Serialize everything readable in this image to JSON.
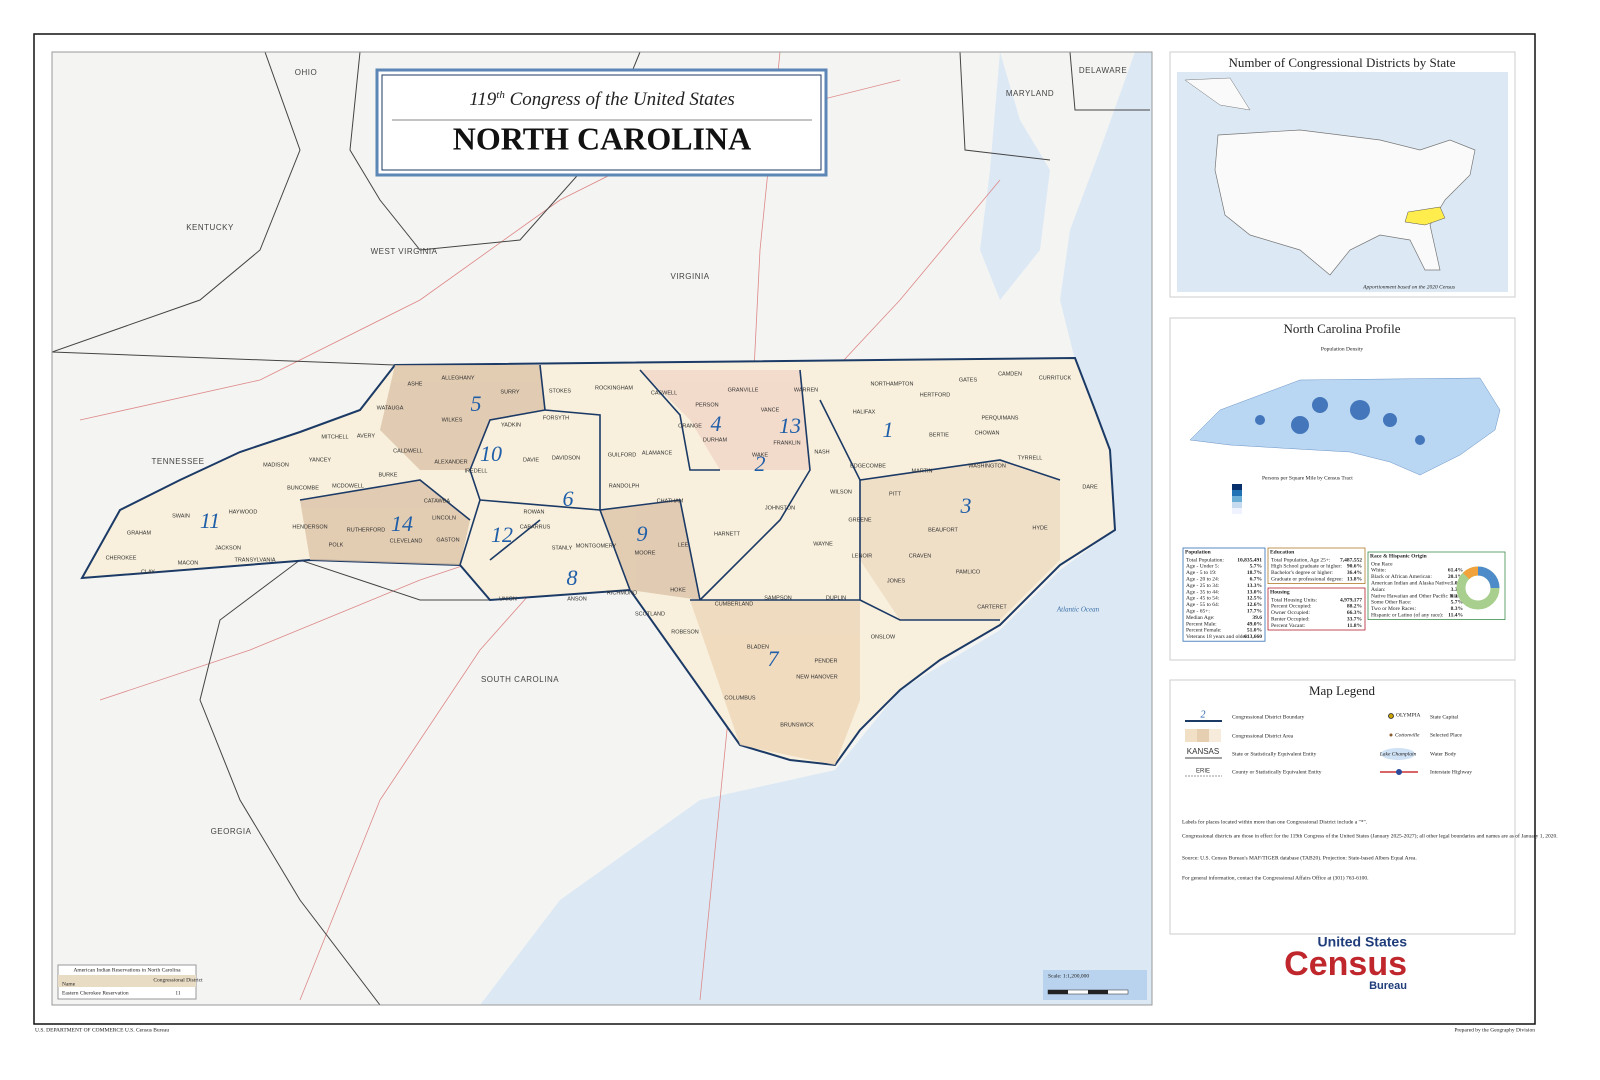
{
  "title": {
    "prefix": "119",
    "superscript": "th",
    "rest": " Congress of the United States",
    "state": "NORTH CAROLINA"
  },
  "map": {
    "neighbors": [
      "OHIO",
      "DELAWARE",
      "MARYLAND",
      "KENTUCKY",
      "WEST VIRGINIA",
      "VIRGINIA",
      "TENNESSEE",
      "SOUTH CAROLINA",
      "GEORGIA"
    ],
    "ocean": "Atlantic Ocean",
    "districts": [
      "1",
      "2",
      "3",
      "4",
      "5",
      "6",
      "7",
      "8",
      "9",
      "10",
      "11",
      "12",
      "13",
      "14"
    ],
    "counties": [
      "ASHE",
      "ALLEGHANY",
      "SURRY",
      "STOKES",
      "ROCKINGHAM",
      "CASWELL",
      "PERSON",
      "GRANVILLE",
      "VANCE",
      "WARREN",
      "NORTHAMPTON",
      "HERTFORD",
      "GATES",
      "CAMDEN",
      "CURRITUCK",
      "WATAUGA",
      "WILKES",
      "YADKIN",
      "FORSYTH",
      "GUILFORD",
      "ALAMANCE",
      "ORANGE",
      "DURHAM",
      "FRANKLIN",
      "HALIFAX",
      "BERTIE",
      "CHOWAN",
      "PERQUIMANS",
      "MITCHELL",
      "AVERY",
      "CALDWELL",
      "ALEXANDER",
      "IREDELL",
      "DAVIE",
      "DAVIDSON",
      "RANDOLPH",
      "CHATHAM",
      "WAKE",
      "NASH",
      "EDGECOMBE",
      "MARTIN",
      "WASHINGTON",
      "TYRRELL",
      "DARE",
      "MADISON",
      "YANCEY",
      "BURKE",
      "BUNCOMBE",
      "MCDOWELL",
      "CATAWBA",
      "ROWAN",
      "JOHNSTON",
      "WILSON",
      "PITT",
      "BEAUFORT",
      "HYDE",
      "HAYWOOD",
      "SWAIN",
      "GRAHAM",
      "LINCOLN",
      "GASTON",
      "CABARRUS",
      "STANLY",
      "MONTGOMERY",
      "LEE",
      "HARNETT",
      "WAYNE",
      "GREENE",
      "LENOIR",
      "CRAVEN",
      "PAMLICO",
      "JACKSON",
      "HENDERSON",
      "POLK",
      "RUTHERFORD",
      "CLEVELAND",
      "TRANSYLVANIA",
      "CHEROKEE",
      "MACON",
      "CLAY",
      "UNION",
      "ANSON",
      "RICHMOND",
      "MOORE",
      "HOKE",
      "SCOTLAND",
      "CUMBERLAND",
      "SAMPSON",
      "DUPLIN",
      "JONES",
      "CARTERET",
      "ONSLOW",
      "ROBESON",
      "BLADEN",
      "PENDER",
      "NEW HANOVER",
      "COLUMBUS",
      "BRUNSWICK"
    ]
  },
  "reservations": {
    "title": "American Indian Reservations in North Carolina",
    "col_name": "Name",
    "col_district": "Congressional District",
    "rows": [
      [
        "Eastern Cherokee Reservation",
        "11"
      ]
    ]
  },
  "scale": "Scale: 1:1,200,000",
  "inset": {
    "title": "Number of Congressional Districts by State",
    "note": "Apportionment based on the 2020 Census"
  },
  "profile": {
    "title": "North Carolina Profile",
    "map_title": "Population Density",
    "density_legend": "Persons per Square Mile by Census Tract",
    "population": {
      "heading": "Population",
      "rows": [
        [
          "Total Population:",
          "10,835,491"
        ],
        [
          "Age - Under 5:",
          "5.7%"
        ],
        [
          "Age - 5 to 19:",
          "18.7%"
        ],
        [
          "Age - 20 to 24:",
          "6.7%"
        ],
        [
          "Age - 25 to 34:",
          "13.3%"
        ],
        [
          "Age - 35 to 44:",
          "13.0%"
        ],
        [
          "Age - 45 to 54:",
          "12.5%"
        ],
        [
          "Age - 55 to 64:",
          "12.6%"
        ],
        [
          "Age - 65+:",
          "17.7%"
        ],
        [
          "Median Age:",
          "39.6"
        ],
        [
          "Percent Male:",
          "49.0%"
        ],
        [
          "Percent Female:",
          "51.0%"
        ],
        [
          "Veterans 18 years and older:",
          "613,660"
        ]
      ]
    },
    "education": {
      "heading": "Education",
      "rows": [
        [
          "Total Population, Age 25+:",
          "7,487,552"
        ],
        [
          "High School graduate or higher:",
          "90.6%"
        ],
        [
          "Bachelor's degree or higher:",
          "36.4%"
        ],
        [
          "Graduate or professional degree:",
          "13.8%"
        ]
      ]
    },
    "housing": {
      "heading": "Housing",
      "rows": [
        [
          "Total Housing Units:",
          "4,979,177"
        ],
        [
          "Percent Occupied:",
          "88.2%"
        ],
        [
          "Owner Occupied:",
          "66.3%"
        ],
        [
          "Renter Occupied:",
          "33.7%"
        ],
        [
          "Percent Vacant:",
          "11.8%"
        ]
      ]
    },
    "race": {
      "heading": "Race & Hispanic Origin",
      "rows": [
        [
          "One Race",
          ""
        ],
        [
          "White:",
          "61.4%"
        ],
        [
          "Black or African American:",
          "20.1%"
        ],
        [
          "American Indian and Alaska Native:",
          "1.0%"
        ],
        [
          "Asian:",
          "3.3%"
        ],
        [
          "Native Hawaiian and Other Pacific Islander:",
          "0.1%"
        ],
        [
          "Some Other Race:",
          "5.7%"
        ],
        [
          "Two or More Races:",
          "8.3%"
        ],
        [
          "Hispanic or Latino (of any race):",
          "11.4%"
        ]
      ]
    }
  },
  "legend": {
    "title": "Map Legend",
    "items": [
      "Congressional District Boundary",
      "Congressional District Area",
      "State or Statistically Equivalent Entity",
      "County or Statistically Equivalent Entity",
      "State Capital",
      "Selected Place",
      "Water Body",
      "Interstate Highway"
    ],
    "samples": [
      "2",
      "KANSAS",
      "ERIE",
      "OLYMPIA",
      "Cottonville",
      "Lake Champlain"
    ],
    "notes": [
      "Labels for places located within more than one Congressional District include a \"*\".",
      "Congressional districts are those in effect for the 119th Congress of the United States (January 2025-2027); all other legal boundaries and names are as of January 1, 2020.",
      "Source: U.S. Census Bureau's MAF/TIGER database (TAB20). Projection: State-based Albers Equal Area.",
      "For general information, contact the Congressional Affairs Office at (301) 763-6100."
    ]
  },
  "logo": {
    "line1": "United States",
    "line2": "Census",
    "line3": "Bureau"
  },
  "footer": {
    "left": "U.S. DEPARTMENT OF COMMERCE  U.S. Census Bureau",
    "right": "Prepared by the Geography Division"
  }
}
